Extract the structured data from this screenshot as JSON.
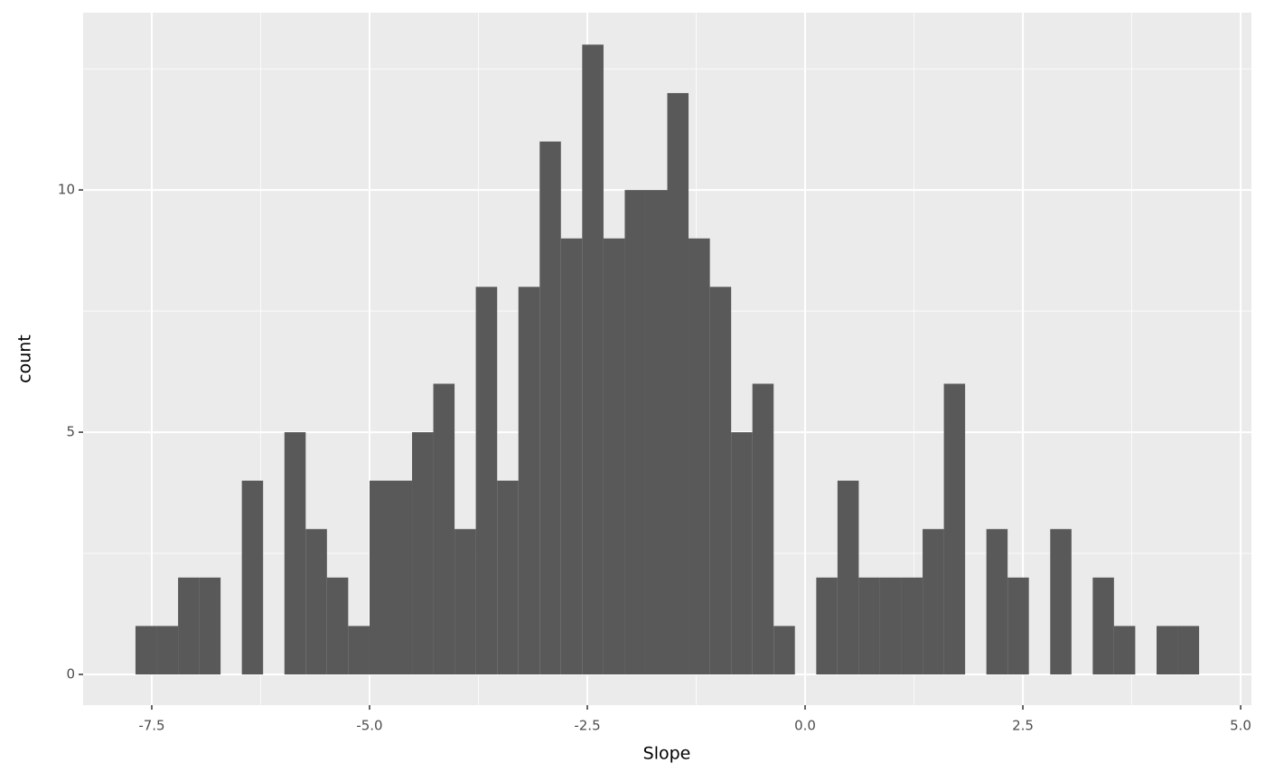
{
  "chart_data": {
    "type": "histogram",
    "xlabel": "Slope",
    "ylabel": "count",
    "bins": [
      -7.687,
      -7.443,
      -7.198,
      -6.954,
      -6.71,
      -6.466,
      -6.222,
      -5.977,
      -5.733,
      -5.489,
      -5.245,
      -5.0,
      -4.756,
      -4.512,
      -4.268,
      -4.024,
      -3.78,
      -3.535,
      -3.291,
      -3.047,
      -2.803,
      -2.559,
      -2.314,
      -2.07,
      -1.826,
      -1.582,
      -1.338,
      -1.093,
      -0.849,
      -0.605,
      -0.361,
      -0.117,
      0.128,
      0.372,
      0.616,
      0.86,
      1.104,
      1.349,
      1.593,
      1.837,
      2.081,
      2.325,
      2.569,
      2.814,
      3.058,
      3.302,
      3.546,
      3.79,
      4.035,
      4.279,
      4.523
    ],
    "values": [
      1,
      1,
      2,
      2,
      0,
      4,
      0,
      5,
      3,
      2,
      1,
      4,
      4,
      5,
      6,
      3,
      8,
      4,
      8,
      11,
      9,
      13,
      9,
      10,
      10,
      12,
      9,
      8,
      5,
      6,
      1,
      0,
      2,
      4,
      2,
      2,
      2,
      3,
      6,
      0,
      3,
      2,
      0,
      3,
      0,
      2,
      1,
      0,
      1,
      1
    ],
    "color": "#595959",
    "xlim": [
      -8.288,
      5.124
    ],
    "xticks": [
      {
        "value": -7.5,
        "label": "-7.5"
      },
      {
        "value": -5,
        "label": "-5.0"
      },
      {
        "value": -2.5,
        "label": "-2.5"
      },
      {
        "value": 0,
        "label": "0.0"
      },
      {
        "value": 2.5,
        "label": "2.5"
      },
      {
        "value": 5,
        "label": "5.0"
      }
    ],
    "ylim": [
      -0.634,
      13.66
    ],
    "yticks": [
      0,
      5,
      10
    ],
    "grid": true
  }
}
